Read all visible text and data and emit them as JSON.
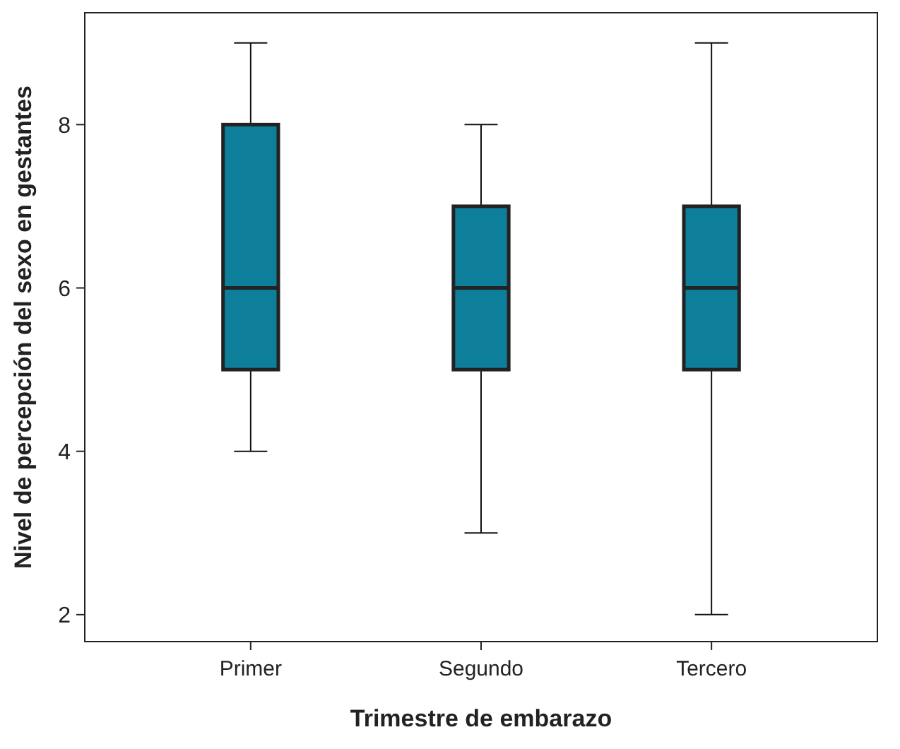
{
  "chart_data": {
    "type": "box",
    "xlabel": "Trimestre de embarazo",
    "ylabel": "Nivel de percepción del sexo en gestantes",
    "categories": [
      "Primer",
      "Segundo",
      "Tercero"
    ],
    "color": "#0e7f9a",
    "ylim": [
      1.67,
      9.37
    ],
    "yticks": [
      2,
      4,
      6,
      8
    ],
    "grid": false,
    "boxes": [
      {
        "low": 4,
        "q1": 5,
        "median": 6,
        "q3": 8,
        "high": 9
      },
      {
        "low": 3,
        "q1": 5,
        "median": 6,
        "q3": 7,
        "high": 8
      },
      {
        "low": 2,
        "q1": 5,
        "median": 6,
        "q3": 7,
        "high": 9
      }
    ]
  }
}
